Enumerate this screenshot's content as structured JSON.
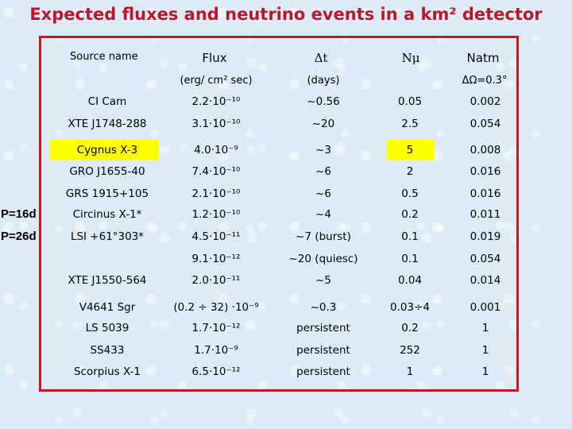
{
  "title": "Expected fluxes and neutrino events in a km² detector",
  "side_labels": [
    "P=16d",
    "P=26d"
  ],
  "headers": {
    "source": "Source name",
    "flux": "Flux",
    "flux_unit": "(erg/ cm² sec)",
    "dt": "Δt",
    "dt_unit": "(days)",
    "nmu": "Nμ",
    "natm": "Natm",
    "natm_note": "ΔΩ=0.3°"
  },
  "rows": [
    {
      "name": "CI Cam",
      "flux": "2.2·10⁻¹⁰",
      "dt": "~0.56",
      "nmu": "0.05",
      "natm": "0.002"
    },
    {
      "name": "XTE J1748-288",
      "flux": "3.1·10⁻¹⁰",
      "dt": "~20",
      "nmu": "2.5",
      "natm": "0.054"
    },
    {
      "name": "Cygnus X-3",
      "flux": "4.0·10⁻⁹",
      "dt": "~3",
      "nmu": "5",
      "natm": "0.008"
    },
    {
      "name": "GRO J1655-40",
      "flux": "7.4·10⁻¹⁰",
      "dt": "~6",
      "nmu": "2",
      "natm": "0.016"
    },
    {
      "name": "GRS 1915+105",
      "flux": "2.1·10⁻¹⁰",
      "dt": "~6",
      "nmu": "0.5",
      "natm": "0.016"
    },
    {
      "name": "Circinus X-1*",
      "flux": "1.2·10⁻¹⁰",
      "dt": "~4",
      "nmu": "0.2",
      "natm": "0.011"
    },
    {
      "name": "LSI +61°303*",
      "flux": "4.5·10⁻¹¹",
      "dt": "~7 (burst)",
      "nmu": "0.1",
      "natm": "0.019"
    },
    {
      "name": "",
      "flux": "9.1·10⁻¹²",
      "dt": "~20 (quiesc)",
      "nmu": "0.1",
      "natm": "0.054"
    },
    {
      "name": "XTE J1550-564",
      "flux": "2.0·10⁻¹¹",
      "dt": "~5",
      "nmu": "0.04",
      "natm": "0.014"
    },
    {
      "name": "V4641 Sgr",
      "flux": "(0.2 ÷ 32) ·10⁻⁹",
      "dt": "~0.3",
      "nmu": "0.03÷4",
      "natm": "0.001"
    },
    {
      "name": "LS 5039",
      "flux": "1.7·10⁻¹²",
      "dt": "persistent",
      "nmu": "0.2",
      "natm": "1"
    },
    {
      "name": "SS433",
      "flux": "1.7·10⁻⁹",
      "dt": "persistent",
      "nmu": "252",
      "natm": "1"
    },
    {
      "name": "Scorpius X-1",
      "flux": "6.5·10⁻¹²",
      "dt": "persistent",
      "nmu": "1",
      "natm": "1"
    }
  ],
  "highlight_color": "#ffff00",
  "title_color": "#c0142c",
  "frame_color": "#c41a1a"
}
